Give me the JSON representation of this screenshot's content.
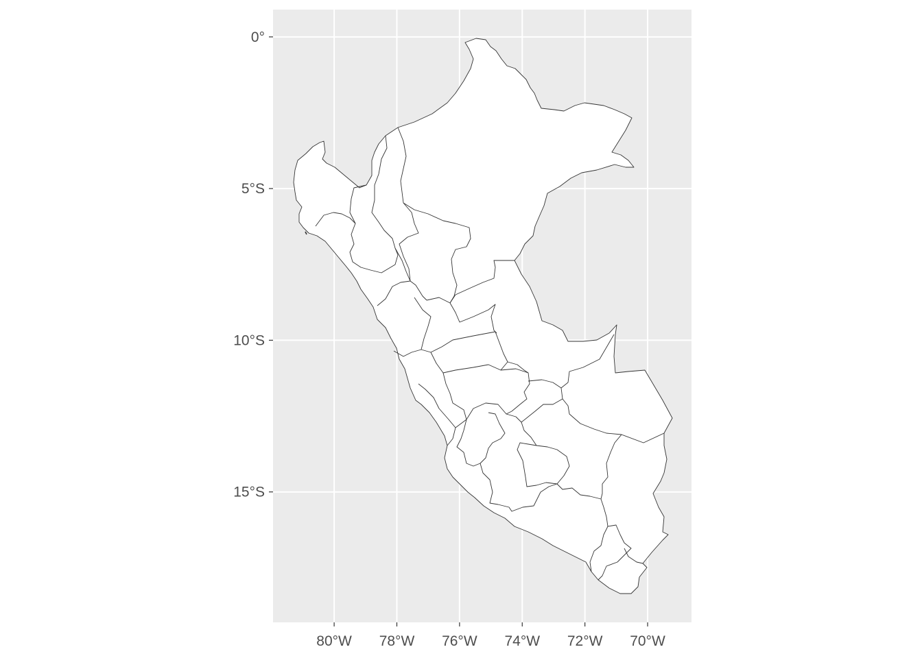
{
  "map": {
    "type": "choropleth-outline",
    "region": "Peru",
    "panel_background": "#ebebeb",
    "grid_color": "#ffffff",
    "land_fill": "#ffffff",
    "border_color": "#333333",
    "lon_range": [
      -81.95,
      -68.6
    ],
    "lat_range": [
      -19.3,
      0.9
    ],
    "x_ticks": [
      {
        "value": -80,
        "label": "80°W"
      },
      {
        "value": -78,
        "label": "78°W"
      },
      {
        "value": -76,
        "label": "76°W"
      },
      {
        "value": -74,
        "label": "74°W"
      },
      {
        "value": -72,
        "label": "72°W"
      },
      {
        "value": -70,
        "label": "70°W"
      }
    ],
    "y_ticks": [
      {
        "value": 0,
        "label": "0°"
      },
      {
        "value": -5,
        "label": "5°S"
      },
      {
        "value": -10,
        "label": "10°S"
      },
      {
        "value": -15,
        "label": "15°S"
      }
    ]
  }
}
